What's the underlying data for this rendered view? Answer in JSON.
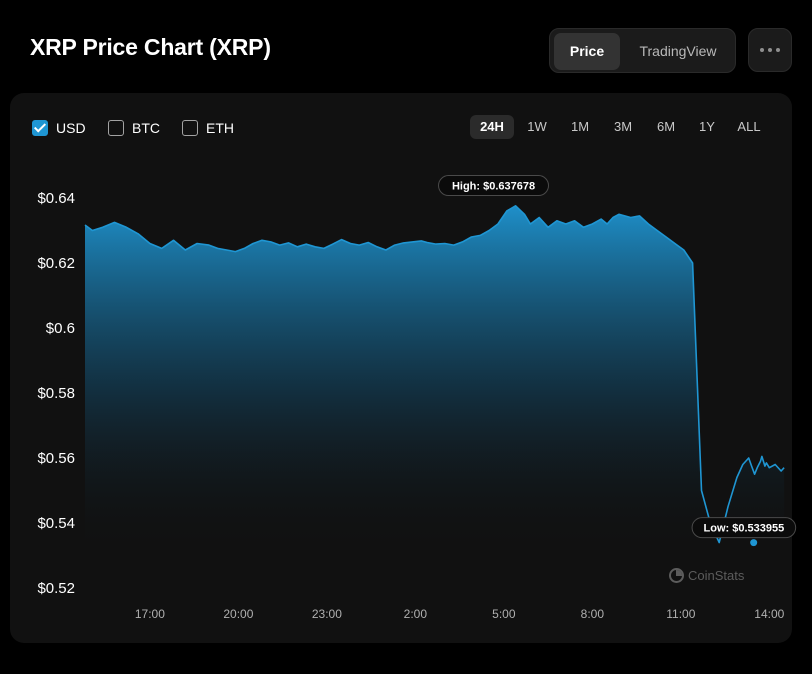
{
  "header": {
    "title": "XRP Price Chart (XRP)",
    "view_options": [
      "Price",
      "TradingView"
    ],
    "active_view": "Price"
  },
  "currencies": [
    {
      "label": "USD",
      "checked": true
    },
    {
      "label": "BTC",
      "checked": false
    },
    {
      "label": "ETH",
      "checked": false
    }
  ],
  "ranges": [
    "24H",
    "1W",
    "1M",
    "3M",
    "6M",
    "1Y",
    "ALL"
  ],
  "active_range": "24H",
  "watermark": "CoinStats",
  "colors": {
    "line": "#1f96d3",
    "background": "#111111"
  },
  "chart_data": {
    "type": "area",
    "x_ticks": [
      "17:00",
      "20:00",
      "23:00",
      "2:00",
      "5:00",
      "8:00",
      "11:00",
      "14:00"
    ],
    "y_ticks": [
      "$0.64",
      "$0.62",
      "$0.6",
      "$0.58",
      "$0.56",
      "$0.54",
      "$0.52"
    ],
    "y_tick_values": [
      0.64,
      0.62,
      0.6,
      0.58,
      0.56,
      0.54,
      0.52
    ],
    "x_range_hours": [
      14.8,
      38.6
    ],
    "ylim": [
      0.52,
      0.64
    ],
    "series": [
      {
        "x": [
          14.8,
          15.05,
          15.4,
          15.8,
          16.2,
          16.6,
          17.0,
          17.4,
          17.8,
          18.2,
          18.6,
          19.0,
          19.3,
          19.6,
          19.9,
          20.2,
          20.5,
          20.8,
          21.1,
          21.4,
          21.7,
          22.0,
          22.3,
          22.6,
          22.9,
          23.2,
          23.5,
          23.8,
          24.1,
          24.4,
          24.7,
          25.0,
          25.3,
          25.6,
          25.9,
          26.2,
          26.4,
          26.7,
          27.0,
          27.3,
          27.6,
          27.9,
          28.2,
          28.5,
          28.8,
          29.1,
          29.4,
          29.7,
          29.9,
          30.2,
          30.5,
          30.8,
          31.1,
          31.4,
          31.7,
          32.0,
          32.3,
          32.5,
          32.7,
          32.9,
          33.1,
          33.3,
          33.6,
          33.9,
          34.2,
          34.5,
          34.8,
          35.1,
          35.4,
          35.7,
          36.0,
          36.3,
          36.6,
          36.9,
          37.1,
          37.3,
          37.4,
          37.5,
          37.6,
          37.7,
          37.75,
          37.8,
          37.85,
          37.9,
          38.0,
          38.2,
          38.4,
          38.5
        ],
        "y": [
          0.6317,
          0.63,
          0.631,
          0.6325,
          0.631,
          0.629,
          0.626,
          0.6245,
          0.627,
          0.624,
          0.626,
          0.6255,
          0.6245,
          0.624,
          0.6235,
          0.6245,
          0.626,
          0.627,
          0.6265,
          0.6255,
          0.6262,
          0.625,
          0.6258,
          0.625,
          0.6245,
          0.6258,
          0.6272,
          0.626,
          0.6255,
          0.6263,
          0.625,
          0.624,
          0.6255,
          0.6262,
          0.6265,
          0.6268,
          0.6263,
          0.6258,
          0.626,
          0.6255,
          0.6265,
          0.628,
          0.6285,
          0.63,
          0.632,
          0.636,
          0.6376,
          0.635,
          0.632,
          0.634,
          0.631,
          0.633,
          0.632,
          0.633,
          0.631,
          0.632,
          0.6335,
          0.632,
          0.634,
          0.635,
          0.6345,
          0.634,
          0.6345,
          0.632,
          0.63,
          0.628,
          0.626,
          0.624,
          0.62,
          0.55,
          0.54,
          0.534,
          0.545,
          0.554,
          0.558,
          0.56,
          0.5575,
          0.555,
          0.5572,
          0.559,
          0.5605,
          0.559,
          0.5575,
          0.5585,
          0.557,
          0.558,
          0.556,
          0.557
        ],
        "smoothing": "none"
      }
    ],
    "annotations": [
      {
        "label": "High: $0.637678",
        "x": 28.65,
        "y": 0.637678
      },
      {
        "label": "Low: $0.533955",
        "x": 37.47,
        "y": 0.533955
      }
    ],
    "grid": false,
    "legend": "none"
  }
}
